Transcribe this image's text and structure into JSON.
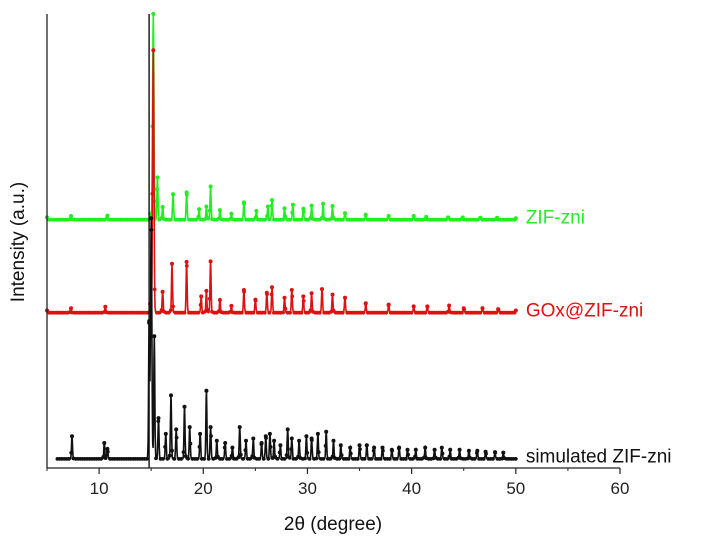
{
  "chart_data": {
    "type": "line",
    "title": "",
    "xlabel": "2θ (degree)",
    "ylabel": "Intensity (a.u.)",
    "xlim": [
      5,
      60
    ],
    "xticks": [
      10,
      20,
      30,
      40,
      50,
      60
    ],
    "ylim": [
      0,
      1
    ],
    "reference_line_x": 14.8,
    "grid": false,
    "series": [
      {
        "name": "ZIF-zni",
        "color": "#22ee22",
        "baseline": 0.547,
        "x": [
          5,
          7.3,
          10.8,
          14.9,
          15.2,
          15.6,
          16.1,
          17.1,
          18.4,
          19.6,
          20.3,
          20.7,
          21.6,
          22.7,
          23.9,
          25.1,
          26.2,
          26.6,
          27.8,
          28.6,
          29.6,
          30.4,
          31.5,
          32.4,
          33.6,
          35.6,
          37.8,
          40.2,
          41.4,
          43.5,
          44.9,
          46.6,
          48.2,
          50
        ],
        "y": [
          0.552,
          0.555,
          0.556,
          0.56,
          1.0,
          0.64,
          0.575,
          0.603,
          0.607,
          0.57,
          0.576,
          0.62,
          0.568,
          0.56,
          0.585,
          0.566,
          0.576,
          0.59,
          0.572,
          0.58,
          0.571,
          0.578,
          0.582,
          0.577,
          0.561,
          0.558,
          0.555,
          0.555,
          0.553,
          0.552,
          0.552,
          0.551,
          0.551,
          0.55
        ]
      },
      {
        "name": "GOx@ZIF-zni",
        "color": "#dd1111",
        "baseline": 0.342,
        "x": [
          5,
          7.3,
          10.6,
          14.9,
          15.2,
          16.1,
          17.0,
          18.4,
          19.8,
          20.3,
          20.7,
          21.6,
          22.7,
          23.9,
          25.0,
          26.1,
          26.6,
          27.8,
          28.5,
          29.6,
          30.4,
          31.4,
          32.4,
          33.6,
          35.6,
          37.8,
          40.2,
          41.5,
          43.6,
          45.0,
          46.8,
          48.3,
          50
        ],
        "y": [
          0.347,
          0.352,
          0.355,
          0.362,
          0.92,
          0.388,
          0.45,
          0.454,
          0.378,
          0.39,
          0.455,
          0.37,
          0.357,
          0.392,
          0.371,
          0.386,
          0.398,
          0.375,
          0.392,
          0.378,
          0.385,
          0.394,
          0.382,
          0.375,
          0.363,
          0.36,
          0.356,
          0.356,
          0.358,
          0.352,
          0.352,
          0.35,
          0.347
        ]
      },
      {
        "name": "simulated ZIF-zni",
        "color": "#111111",
        "baseline": 0.02,
        "x": [
          7.4,
          10.5,
          10.8,
          14.8,
          15.0,
          15.3,
          15.7,
          16.4,
          16.9,
          17.4,
          18.2,
          18.7,
          19.7,
          20.3,
          20.7,
          21.3,
          22.1,
          22.8,
          23.5,
          24.1,
          24.8,
          25.6,
          26.0,
          26.4,
          26.8,
          27.4,
          28.1,
          28.5,
          29.2,
          29.9,
          30.4,
          31.0,
          31.8,
          32.5,
          33.2,
          34.1,
          35.0,
          35.7,
          36.4,
          37.2,
          38.1,
          38.8,
          39.6,
          40.4,
          41.3,
          42.2,
          42.9,
          43.7,
          44.6,
          45.5,
          46.3,
          47.1,
          48.0,
          48.8
        ],
        "y": [
          0.07,
          0.055,
          0.042,
          0.32,
          0.55,
          0.29,
          0.11,
          0.075,
          0.16,
          0.085,
          0.135,
          0.09,
          0.075,
          0.17,
          0.09,
          0.06,
          0.055,
          0.045,
          0.09,
          0.06,
          0.065,
          0.055,
          0.07,
          0.075,
          0.06,
          0.05,
          0.085,
          0.065,
          0.06,
          0.07,
          0.065,
          0.075,
          0.08,
          0.06,
          0.05,
          0.045,
          0.05,
          0.05,
          0.045,
          0.045,
          0.04,
          0.045,
          0.04,
          0.04,
          0.045,
          0.04,
          0.045,
          0.04,
          0.04,
          0.038,
          0.038,
          0.036,
          0.035,
          0.034
        ]
      }
    ]
  }
}
